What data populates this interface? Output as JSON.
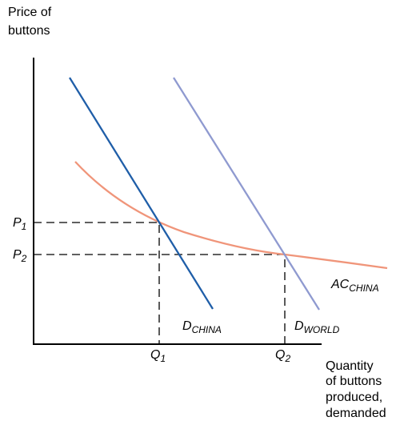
{
  "y_axis_label": [
    "Price of",
    "buttons"
  ],
  "x_axis_label": [
    "Quantity",
    "of buttons",
    "produced,",
    "demanded"
  ],
  "price_labels": [
    {
      "base": "P",
      "sub": "1"
    },
    {
      "base": "P",
      "sub": "2"
    }
  ],
  "quantity_labels": [
    {
      "base": "Q",
      "sub": "1"
    },
    {
      "base": "Q",
      "sub": "2"
    }
  ],
  "curve_labels": [
    {
      "base": "D",
      "sub": "CHINA"
    },
    {
      "base": "D",
      "sub": "WORLD"
    },
    {
      "base": "AC",
      "sub": "CHINA"
    }
  ]
}
